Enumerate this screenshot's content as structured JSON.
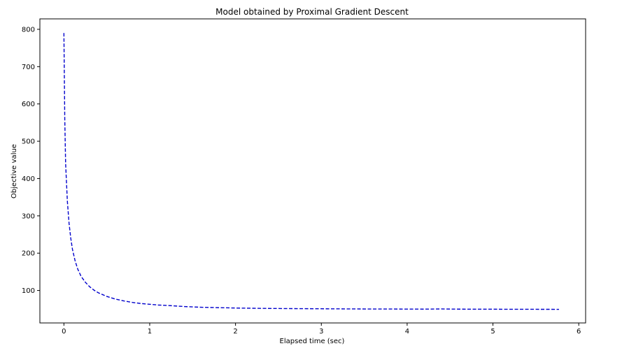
{
  "chart_data": {
    "type": "line",
    "title": "Model obtained by Proximal Gradient Descent",
    "xlabel": "Elapsed time (sec)",
    "ylabel": "Objective value",
    "xlim": [
      -0.28,
      6.08
    ],
    "ylim": [
      13,
      828
    ],
    "xticks": [
      0,
      1,
      2,
      3,
      4,
      5,
      6
    ],
    "yticks": [
      100,
      200,
      300,
      400,
      500,
      600,
      700,
      800
    ],
    "grid": false,
    "legend": "none",
    "series": [
      {
        "color": "#0000cc",
        "linestyle": "dashed",
        "x": [
          0,
          0.01,
          0.02,
          0.04,
          0.06,
          0.08,
          0.1,
          0.13,
          0.16,
          0.2,
          0.25,
          0.3,
          0.35,
          0.4,
          0.5,
          0.6,
          0.7,
          0.8,
          0.9,
          1.0,
          1.1,
          1.2,
          1.4,
          1.6,
          1.8,
          2.0,
          2.3,
          2.6,
          3.0,
          3.4,
          3.8,
          4.2,
          4.4,
          4.6,
          5.0,
          5.4,
          5.77
        ],
        "y": [
          790,
          560,
          440,
          340,
          280,
          240,
          210,
          180,
          158,
          138,
          122,
          110,
          101,
          94,
          84,
          77,
          72,
          68,
          65,
          63,
          61,
          60,
          57,
          55,
          54,
          53,
          52,
          51.5,
          51,
          50.5,
          50.3,
          50,
          50.5,
          50,
          49.8,
          49.6,
          49.5
        ]
      }
    ]
  }
}
